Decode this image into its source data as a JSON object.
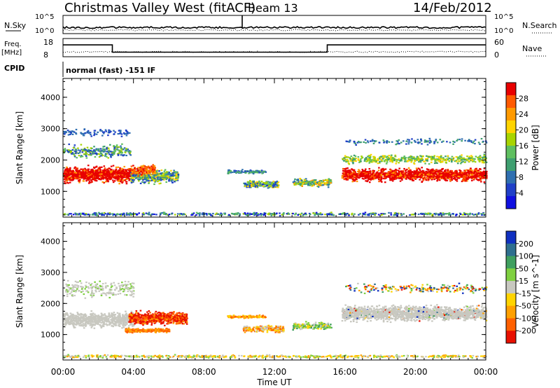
{
  "header": {
    "title": "Christmas Valley West (fitACF)",
    "beam": "Beam 13",
    "date": "14/Feb/2012"
  },
  "labels": {
    "nsky": "N.Sky",
    "nsearch": "N.Search",
    "freq": "Freq.",
    "freq_unit": "[MHz]",
    "nave": "Nave",
    "cpid": "CPID",
    "mode": "normal (fast) -151 IF",
    "nsky_ticks": [
      "10^5",
      "10^0"
    ],
    "nsearch_ticks": [
      "10^5",
      "10^0"
    ],
    "freq_ticks": [
      "18",
      "8"
    ],
    "nave_ticks": [
      "60",
      "0"
    ]
  },
  "chart_data": [
    {
      "type": "line",
      "xlabel": "",
      "ylabel": "Freq. [MHz]",
      "ylim": [
        8,
        18
      ],
      "x_hours": [
        0,
        2.8,
        2.8,
        15,
        15,
        24
      ],
      "freq": [
        14.5,
        14.5,
        10.5,
        10.5,
        14.5,
        14.5
      ]
    },
    {
      "type": "heatmap",
      "title": "",
      "ylabel": "Slant Range [km]",
      "xlabel": "",
      "xlim": [
        0,
        24
      ],
      "ylim": [
        180,
        4600
      ],
      "y_ticks": [
        1000,
        2000,
        3000,
        4000
      ],
      "colorbar_label": "Power [dB]",
      "colorbar_ticks": [
        "28",
        "24",
        "20",
        "16",
        "12",
        "8",
        "4"
      ],
      "colorbar_colors": [
        "#e80000",
        "#ff5a00",
        "#ff9a00",
        "#ffd400",
        "#a8d400",
        "#5fbf60",
        "#3f9f70",
        "#2f6fb0",
        "#2040c8",
        "#1010e0"
      ]
    },
    {
      "type": "heatmap",
      "title": "",
      "ylabel": "Slant Range [km]",
      "xlabel": "Time UT",
      "xlim": [
        0,
        24
      ],
      "ylim": [
        180,
        4600
      ],
      "y_ticks": [
        1000,
        2000,
        3000,
        4000
      ],
      "x_ticks": [
        "00:00",
        "04:00",
        "08:00",
        "12:00",
        "16:00",
        "20:00",
        "00:00"
      ],
      "colorbar_label": "Velocity [m s^-1]",
      "colorbar_ticks": [
        "200",
        "100",
        "50",
        "15",
        "-15",
        "-50",
        "-100",
        "-200"
      ],
      "colorbar_colors": [
        "#1030c0",
        "#2f6f8f",
        "#3f9f5f",
        "#7fd040",
        "#c8c8c0",
        "#ffd400",
        "#ffa000",
        "#ff6000",
        "#e81000"
      ]
    }
  ]
}
